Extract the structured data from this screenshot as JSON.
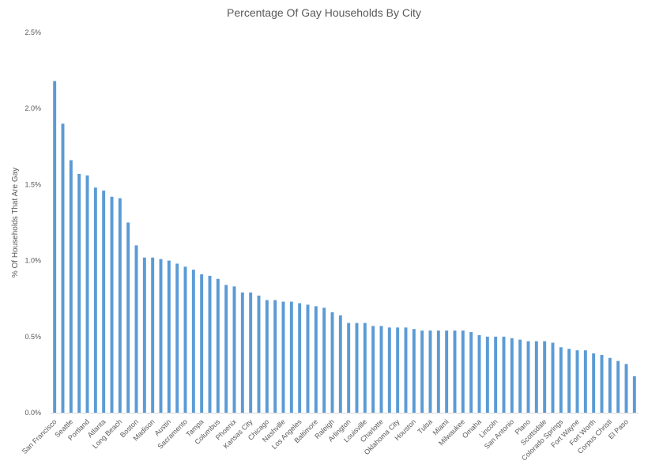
{
  "chart_data": {
    "type": "bar",
    "title": "Percentage Of Gay Households By City",
    "xlabel": "",
    "ylabel": "% Of Households That Are Gay",
    "ylim": [
      0,
      2.5
    ],
    "yticks": [
      "0.0%",
      "0.5%",
      "1.0%",
      "1.5%",
      "2.0%",
      "2.5%"
    ],
    "grid": false,
    "legend": "none",
    "bar_color": "#5b9bd5",
    "categories": [
      "San Francisco",
      "",
      "Seattle",
      "",
      "Portland",
      "",
      "Atlanta",
      "",
      "Long Beach",
      "",
      "Boston",
      "",
      "Madison",
      "",
      "Austin",
      "",
      "Sacramento",
      "",
      "Tampa",
      "",
      "Columbus",
      "",
      "Phoenix",
      "",
      "Kansas City",
      "",
      "Chicago",
      "",
      "Nashville",
      "",
      "Los Angeles",
      "",
      "Baltimore",
      "",
      "Raleigh",
      "",
      "Arlington",
      "",
      "Louisville",
      "",
      "Charlotte",
      "",
      "Oklahoma City",
      "",
      "Houston",
      "",
      "Tulsa",
      "",
      "Miami",
      "",
      "Milwaukee",
      "",
      "Omaha",
      "",
      "Lincoln",
      "",
      "San Antonio",
      "",
      "Plano",
      "",
      "Scottsdale",
      "",
      "Colorado Springs",
      "",
      "Fort Wayne",
      "",
      "Fort Worth",
      "",
      "Corpus Christi",
      "",
      "El Paso",
      ""
    ],
    "values": [
      2.18,
      1.9,
      1.66,
      1.57,
      1.56,
      1.48,
      1.46,
      1.42,
      1.41,
      1.25,
      1.1,
      1.02,
      1.02,
      1.01,
      1.0,
      0.98,
      0.96,
      0.94,
      0.91,
      0.9,
      0.88,
      0.84,
      0.83,
      0.79,
      0.79,
      0.77,
      0.74,
      0.74,
      0.73,
      0.73,
      0.72,
      0.71,
      0.7,
      0.69,
      0.66,
      0.64,
      0.59,
      0.59,
      0.59,
      0.57,
      0.57,
      0.56,
      0.56,
      0.56,
      0.55,
      0.54,
      0.54,
      0.54,
      0.54,
      0.54,
      0.54,
      0.53,
      0.51,
      0.5,
      0.5,
      0.5,
      0.49,
      0.48,
      0.47,
      0.47,
      0.47,
      0.46,
      0.43,
      0.42,
      0.41,
      0.41,
      0.39,
      0.38,
      0.36,
      0.34,
      0.32,
      0.24
    ]
  }
}
